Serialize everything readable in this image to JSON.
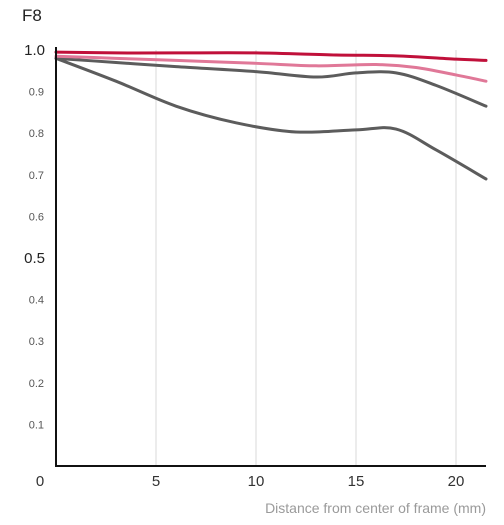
{
  "chart_data": {
    "type": "line",
    "title": "F8",
    "xlabel": "Distance from center of frame (mm)",
    "ylabel": "",
    "xlim": [
      0,
      21.5
    ],
    "ylim": [
      0,
      1.0
    ],
    "x_ticks": [
      "0",
      "5",
      "10",
      "15",
      "20"
    ],
    "y_ticks": [
      "0.1",
      "0.2",
      "0.3",
      "0.4",
      "0.5",
      "0.6",
      "0.7",
      "0.8",
      "0.9",
      "1.0"
    ],
    "grid": "vertical",
    "series": [
      {
        "color": "#c0103a",
        "x": [
          0,
          3,
          6,
          10,
          14,
          17,
          20,
          21.5
        ],
        "y": [
          0.995,
          0.993,
          0.993,
          0.993,
          0.988,
          0.986,
          0.978,
          0.975
        ]
      },
      {
        "color": "#e07898",
        "x": [
          0,
          3,
          6,
          10,
          13,
          16,
          18,
          20,
          21.5
        ],
        "y": [
          0.985,
          0.98,
          0.975,
          0.968,
          0.962,
          0.965,
          0.958,
          0.94,
          0.925
        ]
      },
      {
        "color": "#5c5c5c",
        "x": [
          0,
          3,
          6,
          10,
          13,
          15,
          17,
          19,
          21.5
        ],
        "y": [
          0.98,
          0.97,
          0.96,
          0.948,
          0.935,
          0.945,
          0.945,
          0.915,
          0.865
        ]
      },
      {
        "color": "#5c5c5c",
        "x": [
          0,
          3,
          6,
          9,
          12,
          15,
          17,
          19,
          21.5
        ],
        "y": [
          0.98,
          0.925,
          0.865,
          0.825,
          0.803,
          0.808,
          0.81,
          0.76,
          0.69
        ]
      }
    ]
  }
}
